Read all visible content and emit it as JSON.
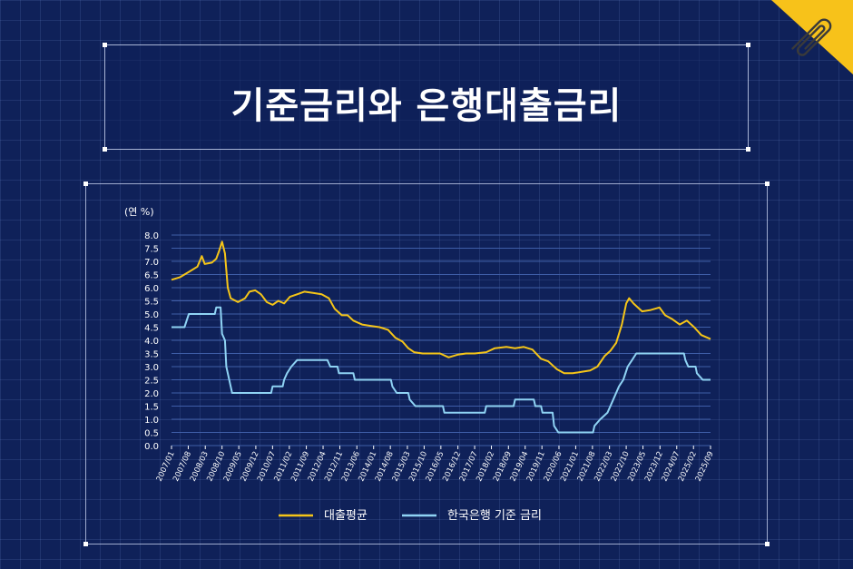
{
  "title": "기준금리와 은행대출금리",
  "colors": {
    "background": "#0f2159",
    "loan_line": "#f5c518",
    "base_line": "#8fd3f4",
    "gridline": "#3f5ea8",
    "badge": "#f7c21a"
  },
  "badge_icon": "paperclip-icon",
  "chart_data": {
    "type": "line",
    "unit_label": "(연 %)",
    "ylim": [
      0,
      8
    ],
    "y_ticks": [
      "0.0",
      "0.5",
      "1.0",
      "1.5",
      "2.0",
      "2.5",
      "3.0",
      "3.5",
      "4.0",
      "4.5",
      "5.0",
      "5.5",
      "6.0",
      "6.5",
      "7.0",
      "7.5",
      "8.0"
    ],
    "x_ticks": [
      {
        "t": 2007.0,
        "label": "2007/01"
      },
      {
        "t": 2007.58,
        "label": "2007/08"
      },
      {
        "t": 2008.17,
        "label": "2008/03"
      },
      {
        "t": 2008.75,
        "label": "2008/10"
      },
      {
        "t": 2009.33,
        "label": "2009/05"
      },
      {
        "t": 2009.92,
        "label": "2009/12"
      },
      {
        "t": 2010.5,
        "label": "2010/07"
      },
      {
        "t": 2011.08,
        "label": "2011/02"
      },
      {
        "t": 2011.67,
        "label": "2011/09"
      },
      {
        "t": 2012.25,
        "label": "2012/04"
      },
      {
        "t": 2012.83,
        "label": "2012/11"
      },
      {
        "t": 2013.42,
        "label": "2013/06"
      },
      {
        "t": 2014.0,
        "label": "2014/01"
      },
      {
        "t": 2014.58,
        "label": "2014/08"
      },
      {
        "t": 2015.17,
        "label": "2015/03"
      },
      {
        "t": 2015.75,
        "label": "2015/10"
      },
      {
        "t": 2016.33,
        "label": "2016/05"
      },
      {
        "t": 2016.92,
        "label": "2016/12"
      },
      {
        "t": 2017.5,
        "label": "2017/07"
      },
      {
        "t": 2018.08,
        "label": "2018/02"
      },
      {
        "t": 2018.67,
        "label": "2018/09"
      },
      {
        "t": 2019.25,
        "label": "2019/04"
      },
      {
        "t": 2019.83,
        "label": "2019/11"
      },
      {
        "t": 2020.42,
        "label": "2020/06"
      },
      {
        "t": 2021.0,
        "label": "2021/01"
      },
      {
        "t": 2021.58,
        "label": "2021/08"
      },
      {
        "t": 2022.17,
        "label": "2022/03"
      },
      {
        "t": 2022.75,
        "label": "2022/10"
      },
      {
        "t": 2023.33,
        "label": "2023/05"
      },
      {
        "t": 2023.92,
        "label": "2023/12"
      },
      {
        "t": 2024.5,
        "label": "2024/07"
      },
      {
        "t": 2025.08,
        "label": "2025/02"
      },
      {
        "t": 2025.67,
        "label": "2025/09"
      }
    ],
    "xlim": [
      2007.0,
      2025.67
    ],
    "legend_position": "bottom-center",
    "series": [
      {
        "name": "대출평균",
        "color": "#f5c518",
        "points": [
          [
            2007.0,
            6.3
          ],
          [
            2007.3,
            6.4
          ],
          [
            2007.6,
            6.6
          ],
          [
            2007.9,
            6.8
          ],
          [
            2008.05,
            7.2
          ],
          [
            2008.15,
            6.9
          ],
          [
            2008.4,
            6.95
          ],
          [
            2008.55,
            7.1
          ],
          [
            2008.65,
            7.4
          ],
          [
            2008.75,
            7.75
          ],
          [
            2008.85,
            7.3
          ],
          [
            2008.95,
            6.0
          ],
          [
            2009.05,
            5.6
          ],
          [
            2009.3,
            5.45
          ],
          [
            2009.55,
            5.6
          ],
          [
            2009.7,
            5.85
          ],
          [
            2009.9,
            5.9
          ],
          [
            2010.1,
            5.75
          ],
          [
            2010.3,
            5.45
          ],
          [
            2010.5,
            5.35
          ],
          [
            2010.7,
            5.5
          ],
          [
            2010.9,
            5.4
          ],
          [
            2011.1,
            5.65
          ],
          [
            2011.35,
            5.75
          ],
          [
            2011.6,
            5.85
          ],
          [
            2011.9,
            5.8
          ],
          [
            2012.2,
            5.75
          ],
          [
            2012.45,
            5.6
          ],
          [
            2012.65,
            5.2
          ],
          [
            2012.9,
            4.95
          ],
          [
            2013.1,
            4.95
          ],
          [
            2013.3,
            4.75
          ],
          [
            2013.6,
            4.6
          ],
          [
            2013.9,
            4.55
          ],
          [
            2014.2,
            4.5
          ],
          [
            2014.5,
            4.4
          ],
          [
            2014.75,
            4.1
          ],
          [
            2015.0,
            3.95
          ],
          [
            2015.2,
            3.7
          ],
          [
            2015.4,
            3.55
          ],
          [
            2015.7,
            3.5
          ],
          [
            2016.0,
            3.5
          ],
          [
            2016.3,
            3.5
          ],
          [
            2016.6,
            3.35
          ],
          [
            2016.9,
            3.45
          ],
          [
            2017.2,
            3.5
          ],
          [
            2017.5,
            3.5
          ],
          [
            2017.9,
            3.55
          ],
          [
            2018.2,
            3.7
          ],
          [
            2018.6,
            3.75
          ],
          [
            2018.9,
            3.7
          ],
          [
            2019.2,
            3.75
          ],
          [
            2019.5,
            3.65
          ],
          [
            2019.8,
            3.3
          ],
          [
            2020.05,
            3.2
          ],
          [
            2020.35,
            2.9
          ],
          [
            2020.6,
            2.75
          ],
          [
            2020.9,
            2.75
          ],
          [
            2021.2,
            2.8
          ],
          [
            2021.5,
            2.85
          ],
          [
            2021.75,
            3.0
          ],
          [
            2022.0,
            3.4
          ],
          [
            2022.2,
            3.6
          ],
          [
            2022.4,
            3.9
          ],
          [
            2022.6,
            4.6
          ],
          [
            2022.75,
            5.4
          ],
          [
            2022.85,
            5.6
          ],
          [
            2023.0,
            5.4
          ],
          [
            2023.3,
            5.1
          ],
          [
            2023.6,
            5.15
          ],
          [
            2023.9,
            5.25
          ],
          [
            2024.1,
            4.95
          ],
          [
            2024.35,
            4.8
          ],
          [
            2024.6,
            4.6
          ],
          [
            2024.85,
            4.75
          ],
          [
            2025.1,
            4.5
          ],
          [
            2025.35,
            4.2
          ],
          [
            2025.67,
            4.05
          ]
        ]
      },
      {
        "name": "한국은행 기준 금리",
        "color": "#8fd3f4",
        "points": [
          [
            2007.0,
            4.5
          ],
          [
            2007.45,
            4.5
          ],
          [
            2007.6,
            5.0
          ],
          [
            2008.5,
            5.0
          ],
          [
            2008.55,
            5.25
          ],
          [
            2008.7,
            5.25
          ],
          [
            2008.75,
            4.25
          ],
          [
            2008.85,
            4.0
          ],
          [
            2008.9,
            3.0
          ],
          [
            2009.0,
            2.5
          ],
          [
            2009.1,
            2.0
          ],
          [
            2010.45,
            2.0
          ],
          [
            2010.5,
            2.25
          ],
          [
            2010.85,
            2.25
          ],
          [
            2010.9,
            2.5
          ],
          [
            2011.0,
            2.75
          ],
          [
            2011.15,
            3.0
          ],
          [
            2011.35,
            3.25
          ],
          [
            2012.4,
            3.25
          ],
          [
            2012.5,
            3.0
          ],
          [
            2012.75,
            3.0
          ],
          [
            2012.8,
            2.75
          ],
          [
            2013.3,
            2.75
          ],
          [
            2013.35,
            2.5
          ],
          [
            2014.6,
            2.5
          ],
          [
            2014.65,
            2.25
          ],
          [
            2014.8,
            2.0
          ],
          [
            2015.2,
            2.0
          ],
          [
            2015.25,
            1.75
          ],
          [
            2015.45,
            1.5
          ],
          [
            2016.4,
            1.5
          ],
          [
            2016.45,
            1.25
          ],
          [
            2017.85,
            1.25
          ],
          [
            2017.9,
            1.5
          ],
          [
            2018.85,
            1.5
          ],
          [
            2018.9,
            1.75
          ],
          [
            2019.55,
            1.75
          ],
          [
            2019.6,
            1.5
          ],
          [
            2019.8,
            1.5
          ],
          [
            2019.85,
            1.25
          ],
          [
            2020.2,
            1.25
          ],
          [
            2020.25,
            0.75
          ],
          [
            2020.4,
            0.5
          ],
          [
            2021.6,
            0.5
          ],
          [
            2021.65,
            0.75
          ],
          [
            2021.85,
            1.0
          ],
          [
            2022.1,
            1.25
          ],
          [
            2022.3,
            1.75
          ],
          [
            2022.5,
            2.25
          ],
          [
            2022.65,
            2.5
          ],
          [
            2022.8,
            3.0
          ],
          [
            2022.95,
            3.25
          ],
          [
            2023.1,
            3.5
          ],
          [
            2024.75,
            3.5
          ],
          [
            2024.8,
            3.25
          ],
          [
            2024.9,
            3.0
          ],
          [
            2025.15,
            3.0
          ],
          [
            2025.2,
            2.75
          ],
          [
            2025.4,
            2.5
          ],
          [
            2025.67,
            2.5
          ]
        ]
      }
    ]
  }
}
